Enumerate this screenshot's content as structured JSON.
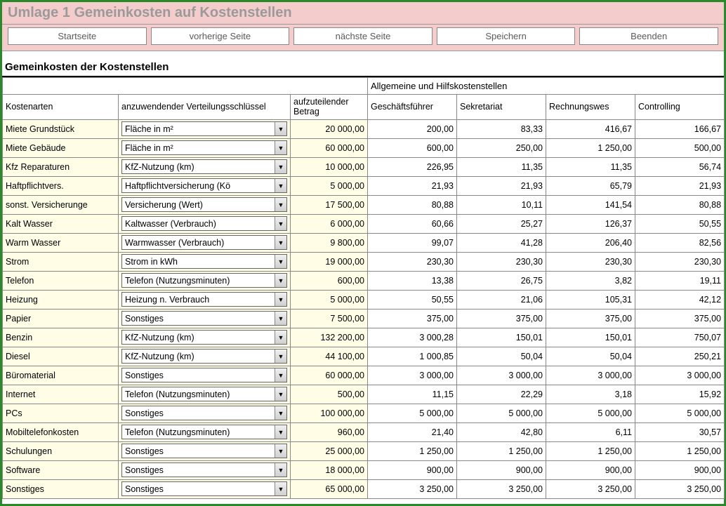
{
  "colors": {
    "border": "#2a8a2a",
    "header_bg": "#f5cccc",
    "yellow": "#fffde6",
    "title_gray": "#9a9a9a",
    "grid": "#888888"
  },
  "title": "Umlage 1 Gemeinkosten auf Kostenstellen",
  "toolbar": {
    "start": "Startseite",
    "prev": "vorherige Seite",
    "next": "nächste Seite",
    "save": "Speichern",
    "exit": "Beenden"
  },
  "section_title": "Gemeinkosten der Kostenstellen",
  "headers": {
    "kostenarten": "Kostenarten",
    "verteilung": "anzuwendender Verteilungsschlüssel",
    "betrag": "aufzuteilender Betrag",
    "group": "Allgemeine und Hilfskostenstellen",
    "c1": "Geschäftsführer",
    "c2": "Sekretariat",
    "c3": "Rechnungswes",
    "c4": "Controlling"
  },
  "rows": [
    {
      "name": "Miete Grundstück",
      "key": "Fläche in m²",
      "amt": "20 000,00",
      "v": [
        "200,00",
        "83,33",
        "416,67",
        "166,67"
      ]
    },
    {
      "name": "Miete Gebäude",
      "key": "Fläche in m²",
      "amt": "60 000,00",
      "v": [
        "600,00",
        "250,00",
        "1 250,00",
        "500,00"
      ]
    },
    {
      "name": "Kfz Reparaturen",
      "key": "KfZ-Nutzung (km)",
      "amt": "10 000,00",
      "v": [
        "226,95",
        "11,35",
        "11,35",
        "56,74"
      ]
    },
    {
      "name": "Haftpflichtvers.",
      "key": "Haftpflichtversicherung (Kö",
      "amt": "5 000,00",
      "v": [
        "21,93",
        "21,93",
        "65,79",
        "21,93"
      ]
    },
    {
      "name": "sonst. Versicherunge",
      "key": "Versicherung (Wert)",
      "amt": "17 500,00",
      "v": [
        "80,88",
        "10,11",
        "141,54",
        "80,88"
      ]
    },
    {
      "name": "Kalt Wasser",
      "key": "Kaltwasser (Verbrauch)",
      "amt": "6 000,00",
      "v": [
        "60,66",
        "25,27",
        "126,37",
        "50,55"
      ]
    },
    {
      "name": "Warm Wasser",
      "key": "Warmwasser (Verbrauch)",
      "amt": "9 800,00",
      "v": [
        "99,07",
        "41,28",
        "206,40",
        "82,56"
      ]
    },
    {
      "name": "Strom",
      "key": "Strom in kWh",
      "amt": "19 000,00",
      "v": [
        "230,30",
        "230,30",
        "230,30",
        "230,30"
      ]
    },
    {
      "name": "Telefon",
      "key": "Telefon (Nutzungsminuten)",
      "amt": "600,00",
      "v": [
        "13,38",
        "26,75",
        "3,82",
        "19,11"
      ]
    },
    {
      "name": "Heizung",
      "key": "Heizung n. Verbrauch",
      "amt": "5 000,00",
      "v": [
        "50,55",
        "21,06",
        "105,31",
        "42,12"
      ]
    },
    {
      "name": "Papier",
      "key": "Sonstiges",
      "amt": "7 500,00",
      "v": [
        "375,00",
        "375,00",
        "375,00",
        "375,00"
      ]
    },
    {
      "name": "Benzin",
      "key": "KfZ-Nutzung (km)",
      "amt": "132 200,00",
      "v": [
        "3 000,28",
        "150,01",
        "150,01",
        "750,07"
      ]
    },
    {
      "name": "Diesel",
      "key": "KfZ-Nutzung (km)",
      "amt": "44 100,00",
      "v": [
        "1 000,85",
        "50,04",
        "50,04",
        "250,21"
      ]
    },
    {
      "name": "Büromaterial",
      "key": "Sonstiges",
      "amt": "60 000,00",
      "v": [
        "3 000,00",
        "3 000,00",
        "3 000,00",
        "3 000,00"
      ]
    },
    {
      "name": "Internet",
      "key": "Telefon (Nutzungsminuten)",
      "amt": "500,00",
      "v": [
        "11,15",
        "22,29",
        "3,18",
        "15,92"
      ]
    },
    {
      "name": "PCs",
      "key": "Sonstiges",
      "amt": "100 000,00",
      "v": [
        "5 000,00",
        "5 000,00",
        "5 000,00",
        "5 000,00"
      ]
    },
    {
      "name": "Mobiltelefonkosten",
      "key": "Telefon (Nutzungsminuten)",
      "amt": "960,00",
      "v": [
        "21,40",
        "42,80",
        "6,11",
        "30,57"
      ]
    },
    {
      "name": "Schulungen",
      "key": "Sonstiges",
      "amt": "25 000,00",
      "v": [
        "1 250,00",
        "1 250,00",
        "1 250,00",
        "1 250,00"
      ]
    },
    {
      "name": "Software",
      "key": "Sonstiges",
      "amt": "18 000,00",
      "v": [
        "900,00",
        "900,00",
        "900,00",
        "900,00"
      ]
    },
    {
      "name": "Sonstiges",
      "key": "Sonstiges",
      "amt": "65 000,00",
      "v": [
        "3 250,00",
        "3 250,00",
        "3 250,00",
        "3 250,00"
      ]
    }
  ]
}
